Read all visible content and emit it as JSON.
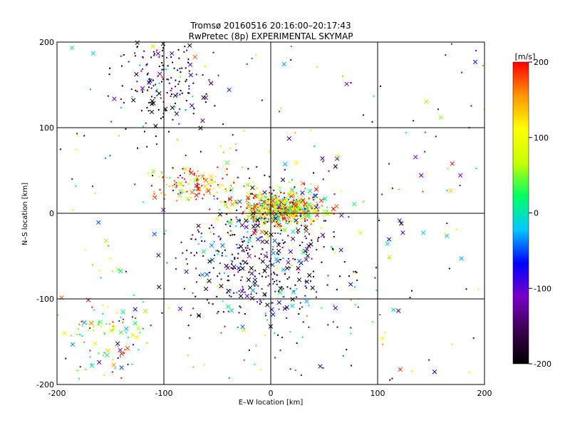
{
  "chart_data": {
    "type": "scatter",
    "title": "Tromsø 20160516 20:16:00–20:17:43",
    "subtitle": "RwPretec (8p) EXPERIMENTAL SKYMAP",
    "xlabel": "E–W location [km]",
    "ylabel": "N–S location [km]",
    "xlim": [
      -200,
      200
    ],
    "ylim": [
      -200,
      200
    ],
    "x_ticks": [
      "-200",
      "-100",
      "0",
      "100",
      "200"
    ],
    "y_ticks": [
      "-200",
      "-100",
      "0",
      "100",
      "200"
    ],
    "grid": true,
    "marker_types": [
      "dot",
      "cross"
    ],
    "colorbar": {
      "label": "[m/s]",
      "range": [
        -200,
        200
      ],
      "ticks": [
        "200",
        "100",
        "0",
        "-100",
        "-200"
      ],
      "colormap": "rainbow (black-purple-blue-cyan-green-yellow-orange-red)",
      "stops": [
        "#000000",
        "#3c0050",
        "#7800c8",
        "#0000ff",
        "#00c8ff",
        "#00ff64",
        "#c8ff00",
        "#ffff00",
        "#ff9600",
        "#ff0000"
      ]
    },
    "clusters": [
      {
        "region": "central",
        "x": 10,
        "y": 5,
        "spread": [
          20,
          10
        ],
        "velocity_mean": 100
      },
      {
        "region": "north-west",
        "x": -100,
        "y": 150,
        "spread": [
          20,
          30
        ],
        "velocity_mean": -180
      },
      {
        "region": "west",
        "x": -70,
        "y": 35,
        "spread": [
          20,
          10
        ],
        "velocity_mean": 150
      },
      {
        "region": "south",
        "x": -10,
        "y": -60,
        "spread": [
          40,
          40
        ],
        "velocity_mean": -150
      },
      {
        "region": "south-west",
        "x": -150,
        "y": -140,
        "spread": [
          20,
          20
        ],
        "velocity_mean": 40
      },
      {
        "region": "scattered",
        "x": 0,
        "y": 0,
        "spread": [
          200,
          200
        ],
        "velocity_mean": 0
      }
    ]
  }
}
